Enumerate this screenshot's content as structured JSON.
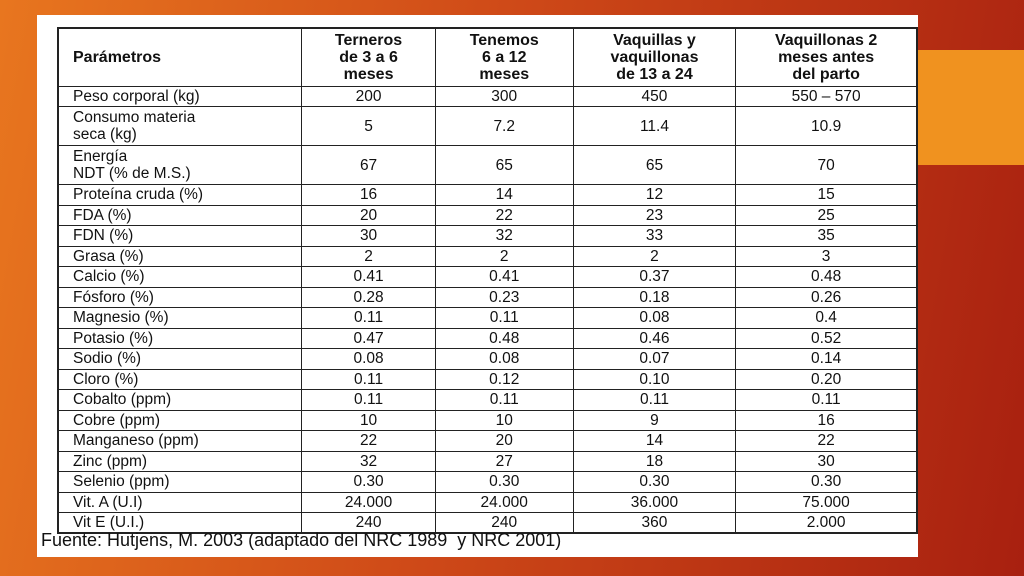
{
  "table": {
    "header": [
      [
        "Parámetros"
      ],
      [
        "Terneros",
        "de 3 a 6",
        "meses"
      ],
      [
        "Tenemos",
        "6 a 12",
        "meses"
      ],
      [
        "Vaquillas y",
        "vaquillonas",
        "de 13 a 24"
      ],
      [
        "Vaquillonas 2",
        "meses antes",
        "del parto"
      ]
    ],
    "rows": [
      [
        [
          "Peso corporal (kg)"
        ],
        "200",
        "300",
        "450",
        "550 – 570"
      ],
      [
        [
          "Consumo materia",
          "seca (kg)"
        ],
        "5",
        "7.2",
        "11.4",
        "10.9"
      ],
      [
        [
          "Energía",
          "NDT (% de M.S.)"
        ],
        "67",
        "65",
        "65",
        "70"
      ],
      [
        [
          "Proteína cruda (%)"
        ],
        "16",
        "14",
        "12",
        "15"
      ],
      [
        [
          "FDA (%)"
        ],
        "20",
        "22",
        "23",
        "25"
      ],
      [
        [
          "FDN (%)"
        ],
        "30",
        "32",
        "33",
        "35"
      ],
      [
        [
          "Grasa (%)"
        ],
        "2",
        "2",
        "2",
        "3"
      ],
      [
        [
          "Calcio (%)"
        ],
        "0.41",
        "0.41",
        "0.37",
        "0.48"
      ],
      [
        [
          "Fósforo (%)"
        ],
        "0.28",
        "0.23",
        "0.18",
        "0.26"
      ],
      [
        [
          "Magnesio (%)"
        ],
        "0.11",
        "0.11",
        "0.08",
        "0.4"
      ],
      [
        [
          "Potasio (%)"
        ],
        "0.47",
        "0.48",
        "0.46",
        "0.52"
      ],
      [
        [
          "Sodio (%)"
        ],
        "0.08",
        "0.08",
        "0.07",
        "0.14"
      ],
      [
        [
          "Cloro (%)"
        ],
        "0.11",
        "0.12",
        "0.10",
        "0.20"
      ],
      [
        [
          "Cobalto (ppm)"
        ],
        "0.11",
        "0.11",
        "0.11",
        "0.11"
      ],
      [
        [
          "Cobre (ppm)"
        ],
        "10",
        "10",
        "9",
        "16"
      ],
      [
        [
          "Manganeso (ppm)"
        ],
        "22",
        "20",
        "14",
        "22"
      ],
      [
        [
          "Zinc (ppm)"
        ],
        "32",
        "27",
        "18",
        "30"
      ],
      [
        [
          "Selenio (ppm)"
        ],
        "0.30",
        "0.30",
        "0.30",
        "0.30"
      ],
      [
        [
          "Vit. A (U.I)"
        ],
        "24.000",
        "24.000",
        "36.000",
        "75.000"
      ],
      [
        [
          "Vit E (U.I.)"
        ],
        "240",
        "240",
        "360",
        "2.000"
      ]
    ]
  },
  "footer": "Fuente: Hutjens, M. 2003 (adaptado del NRC 1989  y NRC 2001)"
}
